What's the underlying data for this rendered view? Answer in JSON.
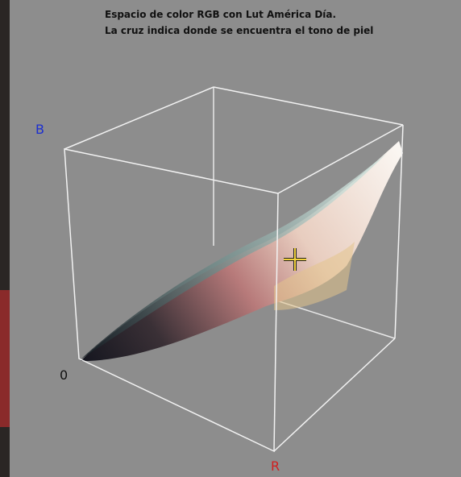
{
  "header": {
    "title_lines": [
      "Espacio de color RGB con Lut América Día.",
      "La cruz indica donde se encuentra el tono de piel"
    ]
  },
  "axes": {
    "b": "B",
    "origin": "0",
    "r": "R"
  }
}
